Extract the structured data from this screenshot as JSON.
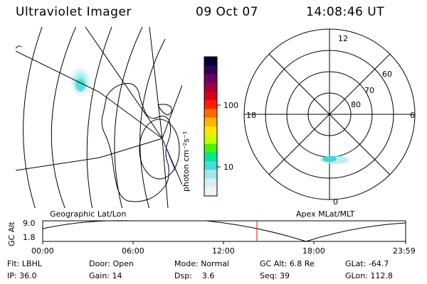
{
  "header": {
    "instrument": "Ultraviolet Imager",
    "date": "09 Oct 07",
    "time": "14:08:46 UT"
  },
  "colorbar": {
    "unit_label": "photon cm⁻²s⁻¹",
    "ticks": [
      "100",
      "10"
    ],
    "colors": [
      "#000033",
      "#300058",
      "#6a0060",
      "#a00040",
      "#d80018",
      "#ff2000",
      "#ff6a00",
      "#ffb400",
      "#ffe800",
      "#c8ff00",
      "#50f000",
      "#00e890",
      "#40e0d8",
      "#a0e8ec",
      "#d8eef0",
      "#eef4f4"
    ]
  },
  "polar_plot": {
    "mlt_labels": {
      "top": "12",
      "bottom": "0",
      "left": "18",
      "right": "6"
    },
    "lat_labels": [
      "60",
      "70",
      "80"
    ]
  },
  "map_labels": {
    "left": "Geographic Lat/Lon",
    "right": "Apex MLat/MLT"
  },
  "alt_plot": {
    "axis_label": "GC Alt",
    "y_ticks": [
      "9.0",
      "1.8"
    ],
    "x_ticks": [
      "00:00",
      "06:00",
      "12:00",
      "18:00",
      "23:59"
    ],
    "marker_color": "#ff0000"
  },
  "status": {
    "row1": [
      {
        "label": "Flt:",
        "value": "LBHL"
      },
      {
        "label": "Door:",
        "value": "Open"
      },
      {
        "label": "Mode:",
        "value": "Normal"
      },
      {
        "label": "GC Alt:",
        "value": "6.8 Re"
      },
      {
        "label": "GLat:",
        "value": "-64.7"
      }
    ],
    "row2": [
      {
        "label": "IP:",
        "value": "36.0"
      },
      {
        "label": "Gain:",
        "value": "14"
      },
      {
        "label": "Dsp:",
        "value": "3.6"
      },
      {
        "label": "Seq:",
        "value": "39"
      },
      {
        "label": "GLon:",
        "value": "112.8"
      }
    ]
  }
}
